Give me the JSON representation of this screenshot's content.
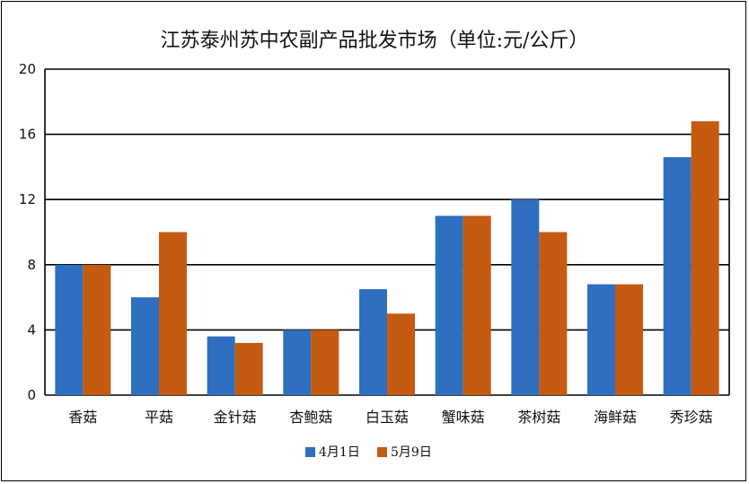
{
  "chart_data": {
    "type": "bar",
    "title": "江苏泰州苏中农副产品批发市场（单位:元/公斤）",
    "xlabel": "",
    "ylabel": "",
    "categories": [
      "香菇",
      "平菇",
      "金针菇",
      "杏鲍菇",
      "白玉菇",
      "蟹味菇",
      "茶树菇",
      "海鲜菇",
      "秀珍菇"
    ],
    "series": [
      {
        "name": "4月1日",
        "color": "#2e6fbf",
        "values": [
          8,
          6,
          3.6,
          4,
          6.5,
          11,
          12,
          6.8,
          14.6
        ]
      },
      {
        "name": "5月9日",
        "color": "#c55a11",
        "values": [
          8,
          10,
          3.2,
          4,
          5,
          11,
          10,
          6.8,
          16.8
        ]
      }
    ],
    "ylim": [
      0,
      20
    ],
    "yticks": [
      0,
      4,
      8,
      12,
      16,
      20
    ],
    "grid": "horizontal",
    "legend_position": "bottom"
  }
}
